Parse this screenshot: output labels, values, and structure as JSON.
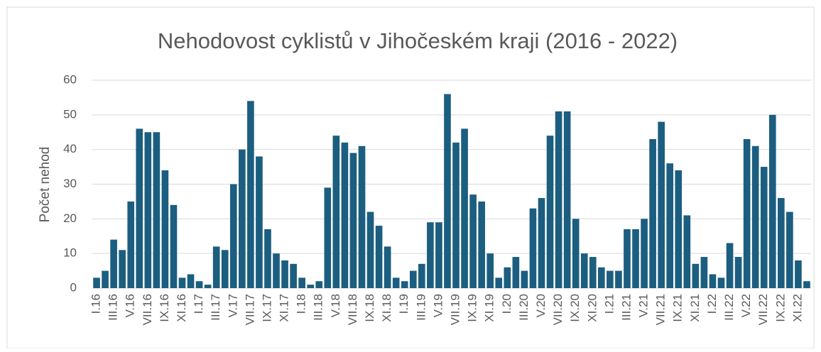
{
  "chart_data": {
    "type": "bar",
    "title": "Nehodovost cyklistů v Jihočeském kraji (2016 - 2022)",
    "y_label": "Počet nehod",
    "categories": [
      "I.16",
      null,
      "III.16",
      null,
      "V.16",
      null,
      "VII.16",
      null,
      "IX.16",
      null,
      "XI.16",
      null,
      "I.17",
      null,
      "III.17",
      null,
      "V.17",
      null,
      "VII.17",
      null,
      "IX.17",
      null,
      "XI.17",
      null,
      "I.18",
      null,
      "III.18",
      null,
      "V.18",
      null,
      "VII.18",
      null,
      "IX.18",
      null,
      "XI.18",
      null,
      "I.19",
      null,
      "III.19",
      null,
      "V.19",
      null,
      "VII.19",
      null,
      "IX.19",
      null,
      "XI.19",
      null,
      "I.20",
      null,
      "III.20",
      null,
      "V.20",
      null,
      "VII.20",
      null,
      "IX.20",
      null,
      "XI.20",
      null,
      "I.21",
      null,
      "III.21",
      null,
      "V.21",
      null,
      "VII.21",
      null,
      "IX.21",
      null,
      "XI.21",
      null,
      "I.22",
      null,
      "III.22",
      null,
      "V.22",
      null,
      "VII.22",
      null,
      "IX.22",
      null,
      "XI.22",
      null
    ],
    "values": [
      3,
      5,
      14,
      11,
      25,
      46,
      45,
      45,
      34,
      24,
      3,
      4,
      2,
      1,
      12,
      11,
      30,
      40,
      54,
      38,
      17,
      10,
      8,
      7,
      3,
      1,
      2,
      29,
      44,
      42,
      39,
      41,
      22,
      18,
      12,
      3,
      2,
      5,
      7,
      19,
      19,
      56,
      42,
      46,
      27,
      25,
      10,
      3,
      6,
      9,
      5,
      23,
      26,
      44,
      51,
      51,
      20,
      10,
      9,
      6,
      5,
      5,
      17,
      17,
      20,
      43,
      48,
      36,
      34,
      21,
      7,
      9,
      4,
      3,
      13,
      9,
      43,
      41,
      35,
      50,
      26,
      22,
      8,
      2
    ],
    "color": "#1b5e80",
    "ylim": [
      0,
      60
    ],
    "yticks": [
      0,
      10,
      20,
      30,
      40,
      50,
      60
    ],
    "grid": true
  }
}
